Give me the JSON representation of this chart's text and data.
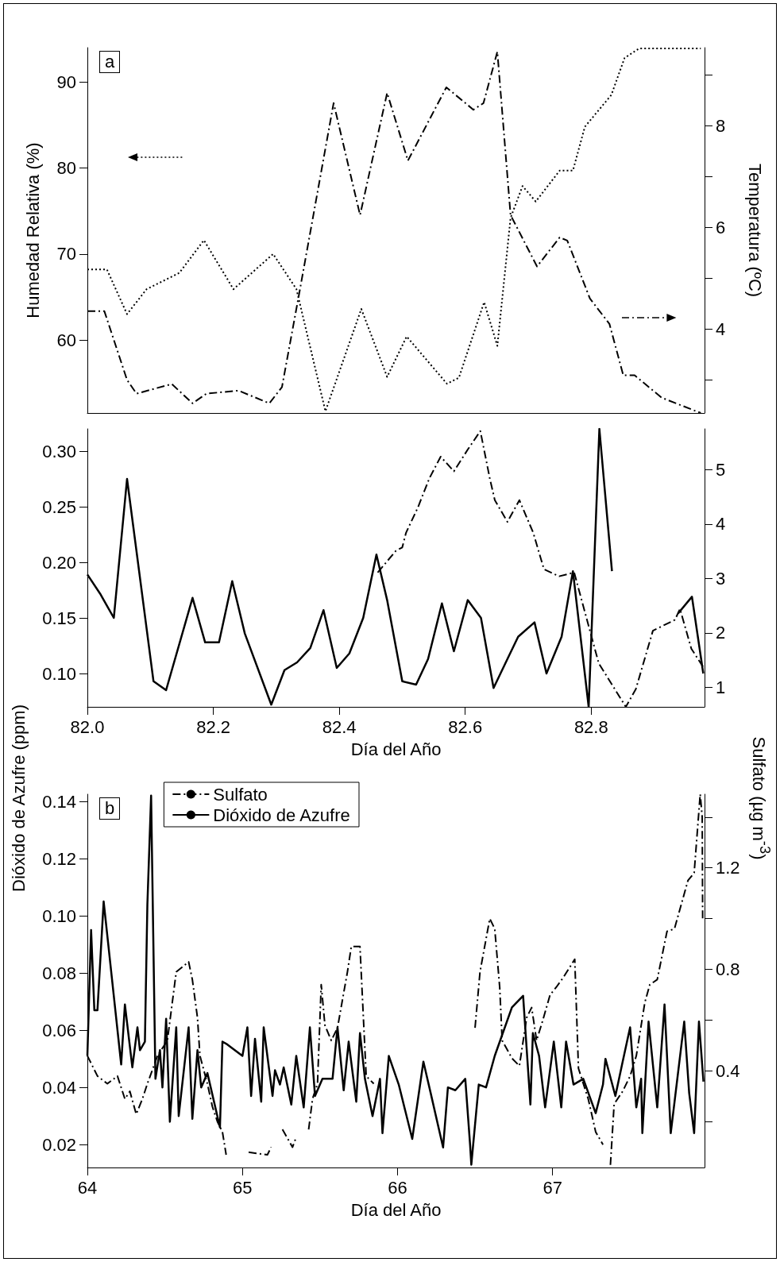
{
  "chart_data": [
    {
      "type": "line",
      "annotations": [
        "a"
      ],
      "ylabel": "Humedad Relativa (%)",
      "y2label": "Temperatura (ºC)",
      "tick_labels": "y",
      "xlim": [
        82,
        82.98
      ],
      "ylim": [
        51.5,
        94
      ],
      "yticks": [
        60,
        70,
        80,
        90
      ],
      "y2lim": [
        2.35,
        9.53
      ],
      "y2ticks": [
        {
          "value": 3,
          "label": null
        },
        4,
        {
          "value": 5,
          "label": null
        },
        6,
        {
          "value": 7,
          "label": null
        },
        8,
        {
          "value": 9,
          "label": null
        }
      ],
      "series": [
        {
          "color": "#000000",
          "line_style": "dotted",
          "x": [
            82.0,
            82.031,
            82.063,
            82.094,
            82.146,
            82.185,
            82.232,
            82.295,
            82.332,
            82.378,
            82.435,
            82.476,
            82.507,
            82.571,
            82.59,
            82.63,
            82.651,
            82.672,
            82.691,
            82.712,
            82.75,
            82.771,
            82.79,
            82.832,
            82.853,
            82.876,
            82.974
          ],
          "values": [
            68.2,
            68.2,
            63.0,
            65.9,
            67.8,
            71.6,
            65.9,
            70.0,
            65.9,
            51.7,
            63.6,
            55.7,
            60.4,
            54.9,
            55.6,
            64.4,
            59.3,
            74.2,
            77.9,
            76.1,
            79.7,
            79.7,
            84.8,
            88.5,
            92.8,
            93.9,
            93.9
          ]
        },
        {
          "color": "#000000",
          "line_style": "dashed",
          "axis": "y2",
          "x": [
            82.0,
            82.027,
            82.063,
            82.078,
            82.134,
            82.167,
            82.189,
            82.24,
            82.289,
            82.309,
            82.338,
            82.391,
            82.433,
            82.476,
            82.509,
            82.57,
            82.613,
            82.629,
            82.651,
            82.672,
            82.714,
            82.75,
            82.762,
            82.798,
            82.829,
            82.851,
            82.869,
            82.912,
            82.974
          ],
          "values": [
            4.35,
            4.35,
            3.0,
            2.73,
            2.92,
            2.54,
            2.73,
            2.79,
            2.54,
            2.86,
            4.81,
            8.44,
            6.24,
            8.64,
            7.31,
            8.75,
            8.31,
            8.44,
            9.45,
            6.24,
            5.23,
            5.8,
            5.74,
            4.6,
            4.1,
            3.09,
            3.09,
            2.65,
            2.35
          ]
        }
      ]
    },
    {
      "type": "line",
      "ylabel": "Dióxido de Azufre (ppm)",
      "y2label": "Sulfato (µg m$^{-3}$)",
      "xlabel": "Día del Año",
      "xlim": [
        82,
        82.98
      ],
      "xticks": [
        {
          "value": 82,
          "label": "82.0"
        },
        82.2,
        82.4,
        82.6,
        82.8
      ],
      "ylim": [
        0.07,
        0.32
      ],
      "yticks": [
        {
          "value": 0.1,
          "label": "0.10"
        },
        0.15,
        {
          "value": 0.2,
          "label": "0.20"
        },
        0.25,
        {
          "value": 0.3,
          "label": "0.30"
        }
      ],
      "y2lim": [
        0.64,
        5.75
      ],
      "y2ticks": [
        1,
        2,
        3,
        4,
        5
      ],
      "series": [
        {
          "color": "#000000",
          "line_style": "solid",
          "x": [
            82.0,
            82.02,
            82.042,
            82.063,
            82.105,
            82.125,
            82.167,
            82.187,
            82.209,
            82.23,
            82.25,
            82.292,
            82.313,
            82.333,
            82.354,
            82.375,
            82.396,
            82.416,
            82.438,
            82.459,
            82.476,
            82.5,
            82.522,
            82.541,
            82.563,
            82.582,
            82.604,
            82.625,
            82.645,
            82.667,
            82.684,
            82.71,
            82.729,
            82.753,
            82.771,
            82.796,
            82.813,
            82.833,
            82.885,
            82.938,
            82.96,
            82.978
          ],
          "values": [
            0.189,
            0.172,
            0.15,
            0.275,
            0.093,
            0.085,
            0.168,
            0.128,
            0.128,
            0.183,
            0.136,
            0.072,
            0.103,
            0.11,
            0.123,
            0.157,
            0.105,
            0.118,
            0.15,
            0.207,
            0.166,
            0.093,
            0.09,
            0.113,
            0.163,
            0.12,
            0.166,
            0.15,
            0.087,
            0.113,
            0.133,
            0.146,
            0.1,
            0.133,
            0.192,
            0.07,
            0.32,
            0.192,
            null,
            0.154,
            0.169,
            0.1
          ]
        },
        {
          "color": "#000000",
          "line_style": "dashed",
          "axis": "y2",
          "x": [
            82.461,
            82.49,
            82.5,
            82.506,
            82.525,
            82.543,
            82.561,
            82.582,
            82.604,
            82.624,
            82.639,
            82.647,
            82.667,
            82.686,
            82.708,
            82.725,
            82.749,
            82.773,
            82.798,
            82.812,
            82.855,
            82.871,
            82.898,
            82.933,
            82.941,
            82.959,
            82.978
          ],
          "values": [
            3.11,
            3.51,
            3.57,
            3.84,
            4.31,
            4.84,
            5.24,
            4.97,
            5.37,
            5.71,
            4.84,
            4.44,
            4.04,
            4.44,
            3.84,
            3.17,
            3.04,
            3.11,
            2.04,
            1.44,
            0.64,
            0.97,
            2.04,
            2.24,
            2.44,
            1.71,
            1.37
          ]
        }
      ]
    },
    {
      "type": "line",
      "annotations": [
        "b"
      ],
      "xlabel": "Día del Año",
      "legend": "top left",
      "xlim": [
        64,
        67.98
      ],
      "xticks": [
        64,
        65,
        66,
        67
      ],
      "ylim": [
        0.012,
        0.1425
      ],
      "yticks": [
        0.02,
        0.04,
        0.06,
        0.08,
        {
          "value": 0.1,
          "label": "0.10"
        },
        0.12,
        0.14
      ],
      "y2lim": [
        0.02,
        1.49
      ],
      "y2ticks": [
        {
          "value": 0.2,
          "label": null
        },
        0.4,
        {
          "value": 0.6,
          "label": null
        },
        0.8,
        {
          "value": 1.0,
          "label": null
        },
        1.2,
        {
          "value": 1.4,
          "label": null
        }
      ],
      "series": [
        {
          "name": "Sulfato",
          "color": "#000000",
          "line_style": "dashed",
          "axis": "y2",
          "x": [
            64.0,
            64.065,
            64.129,
            64.194,
            64.242,
            64.274,
            64.315,
            64.355,
            64.387,
            64.411,
            64.452,
            64.516,
            64.573,
            64.613,
            64.653,
            64.677,
            64.71,
            64.726,
            64.774,
            64.806,
            64.839,
            64.871,
            64.895,
            64.97,
            65.04,
            65.161,
            65.185,
            65.22,
            65.258,
            65.323,
            65.347,
            65.39,
            65.427,
            65.452,
            65.484,
            65.508,
            65.532,
            65.573,
            65.613,
            65.677,
            65.702,
            65.758,
            65.798,
            65.847,
            66.2,
            66.5,
            66.532,
            66.595,
            66.627,
            66.659,
            66.675,
            66.738,
            66.786,
            66.833,
            66.865,
            66.897,
            66.937,
            66.984,
            67.024,
            67.071,
            67.143,
            67.167,
            67.23,
            67.278,
            67.325,
            67.35,
            67.373,
            67.397,
            67.452,
            67.5,
            67.54,
            67.595,
            67.627,
            67.675,
            67.738,
            67.786,
            67.873,
            67.913,
            67.952,
            67.965,
            67.968
          ],
          "values": [
            0.46,
            0.38,
            0.35,
            0.38,
            0.29,
            0.32,
            0.23,
            0.29,
            0.35,
            0.39,
            0.46,
            0.52,
            0.79,
            0.81,
            0.83,
            0.76,
            0.61,
            0.46,
            0.35,
            0.26,
            0.2,
            0.16,
            0.07,
            null,
            0.08,
            0.07,
            0.1,
            null,
            0.17,
            0.1,
            0.14,
            null,
            0.17,
            0.29,
            0.35,
            0.74,
            0.58,
            0.52,
            0.57,
            0.79,
            0.89,
            0.89,
            0.38,
            0.35,
            null,
            0.57,
            0.79,
            1.0,
            0.96,
            0.73,
            0.52,
            0.45,
            0.42,
            0.61,
            0.65,
            0.52,
            0.6,
            0.7,
            0.73,
            0.77,
            0.84,
            0.41,
            0.29,
            0.16,
            0.11,
            null,
            0.03,
            0.27,
            0.32,
            0.38,
            0.46,
            0.67,
            0.74,
            0.76,
            0.95,
            0.96,
            1.15,
            1.18,
            1.49,
            1.4,
            0.99
          ]
        },
        {
          "name": "Dióxido de Azufre",
          "color": "#000000",
          "line_style": "solid",
          "x": [
            64.0,
            64.024,
            64.045,
            64.065,
            64.105,
            64.218,
            64.242,
            64.29,
            64.323,
            64.339,
            64.371,
            64.387,
            64.411,
            64.439,
            64.468,
            64.484,
            64.508,
            64.532,
            64.573,
            64.589,
            64.653,
            64.677,
            64.71,
            64.734,
            64.774,
            64.855,
            64.871,
            64.903,
            65.0,
            65.032,
            65.056,
            65.081,
            65.121,
            65.137,
            65.194,
            65.21,
            65.242,
            65.266,
            65.315,
            65.347,
            65.395,
            65.435,
            65.468,
            65.516,
            65.581,
            65.613,
            65.653,
            65.685,
            65.734,
            65.758,
            65.79,
            65.839,
            65.887,
            65.903,
            65.944,
            66.008,
            66.095,
            66.167,
            66.214,
            66.294,
            66.325,
            66.373,
            66.437,
            66.468,
            66.476,
            66.524,
            66.571,
            66.627,
            66.738,
            66.81,
            66.857,
            66.873,
            66.913,
            66.952,
            67.008,
            67.056,
            67.087,
            67.135,
            67.198,
            67.278,
            67.325,
            67.341,
            67.405,
            67.452,
            67.5,
            67.54,
            67.571,
            67.579,
            67.619,
            67.675,
            67.722,
            67.762,
            67.849,
            67.881,
            67.913,
            67.944,
            67.973
          ],
          "values": [
            0.051,
            0.095,
            0.067,
            0.067,
            0.105,
            0.048,
            0.069,
            0.047,
            0.061,
            0.053,
            0.056,
            0.104,
            0.142,
            0.043,
            0.053,
            0.04,
            0.064,
            0.028,
            0.061,
            0.03,
            0.061,
            0.029,
            0.053,
            0.04,
            0.045,
            0.026,
            0.056,
            0.055,
            0.051,
            0.061,
            0.037,
            0.057,
            0.035,
            0.061,
            0.037,
            0.046,
            0.041,
            0.047,
            0.034,
            0.051,
            0.033,
            0.061,
            0.037,
            0.043,
            0.043,
            0.061,
            0.039,
            0.056,
            0.035,
            0.059,
            0.043,
            0.03,
            0.043,
            0.024,
            0.051,
            0.041,
            0.022,
            0.049,
            0.038,
            0.019,
            0.04,
            0.039,
            0.043,
            0.02,
            0.013,
            0.041,
            0.04,
            0.051,
            0.068,
            0.072,
            0.034,
            0.059,
            0.051,
            0.033,
            0.056,
            0.033,
            0.056,
            0.041,
            0.043,
            0.031,
            0.041,
            0.05,
            0.037,
            0.049,
            0.061,
            0.033,
            0.043,
            0.024,
            0.063,
            0.033,
            0.069,
            0.024,
            0.063,
            0.038,
            0.024,
            0.063,
            0.042
          ]
        }
      ]
    }
  ]
}
